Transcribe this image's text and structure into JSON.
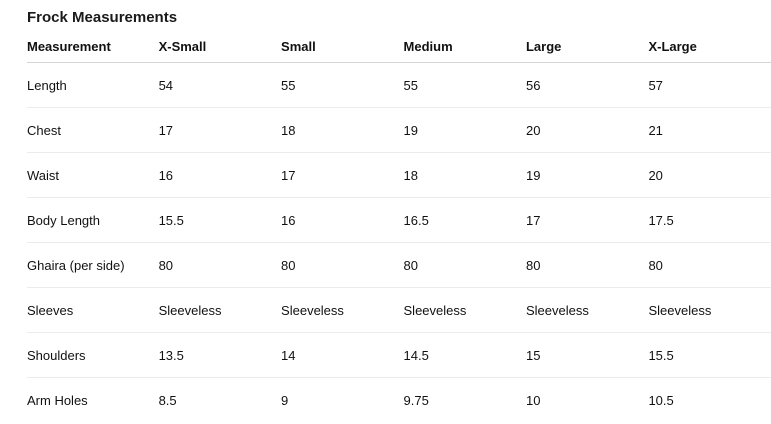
{
  "title": "Frock Measurements",
  "headers": [
    "Measurement",
    "X-Small",
    "Small",
    "Medium",
    "Large",
    "X-Large"
  ],
  "rows": [
    [
      "Length",
      "54",
      "55",
      "55",
      "56",
      "57"
    ],
    [
      "Chest",
      "17",
      "18",
      "19",
      "20",
      "21"
    ],
    [
      "Waist",
      "16",
      "17",
      "18",
      "19",
      "20"
    ],
    [
      "Body Length",
      "15.5",
      "16",
      "16.5",
      "17",
      "17.5"
    ],
    [
      "Ghaira (per side)",
      "80",
      "80",
      "80",
      "80",
      "80"
    ],
    [
      "Sleeves",
      "Sleeveless",
      "Sleeveless",
      "Sleeveless",
      "Sleeveless",
      "Sleeveless"
    ],
    [
      "Shoulders",
      "13.5",
      "14",
      "14.5",
      "15",
      "15.5"
    ],
    [
      "Arm Holes",
      "8.5",
      "9",
      "9.75",
      "10",
      "10.5"
    ]
  ]
}
